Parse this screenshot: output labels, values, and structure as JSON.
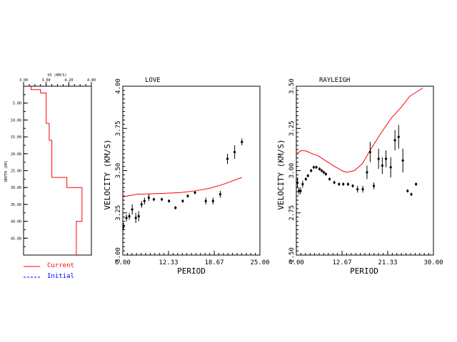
{
  "chart_data": [
    {
      "type": "line",
      "title": "",
      "xlabel": "VS (KM/S)",
      "ylabel": "DEPTH (KM)",
      "x_axis_position": "top",
      "xlim": [
        3.0,
        4.8
      ],
      "x_ticks": [
        "3.00",
        "3.60",
        "4.20",
        "4.80"
      ],
      "ylim": [
        0,
        50
      ],
      "y_ticks": [
        "5.00",
        "10.00",
        "15.00",
        "20.00",
        "25.00",
        "30.00",
        "35.00",
        "40.00",
        "45.00"
      ],
      "y_tick_values": [
        5,
        10,
        15,
        20,
        25,
        30,
        35,
        40,
        45
      ],
      "series": [
        {
          "name": "Current",
          "color": "#ff0000",
          "style": "solid",
          "steps": [
            {
              "vs": 3.2,
              "top": 0,
              "bottom": 1
            },
            {
              "vs": 3.45,
              "top": 1,
              "bottom": 2
            },
            {
              "vs": 3.6,
              "top": 2,
              "bottom": 11
            },
            {
              "vs": 3.68,
              "top": 11,
              "bottom": 16
            },
            {
              "vs": 3.75,
              "top": 16,
              "bottom": 27
            },
            {
              "vs": 4.15,
              "top": 27,
              "bottom": 30
            },
            {
              "vs": 4.55,
              "top": 30,
              "bottom": 40
            },
            {
              "vs": 4.4,
              "top": 40,
              "bottom": 50
            }
          ]
        }
      ],
      "legend": [
        {
          "label": "Current",
          "color": "#ff0000",
          "style": "solid"
        },
        {
          "label": "Initial",
          "color": "#0000ff",
          "style": "dashed"
        }
      ]
    },
    {
      "type": "scatter",
      "title": "LOVE",
      "xlabel": "PERIOD",
      "ylabel": "VELOCITY (KM/S)",
      "xlim": [
        6.0,
        25.0
      ],
      "x_ticks": [
        "6.00",
        "12.33",
        "18.67",
        "25.00"
      ],
      "ylim": [
        3.0,
        4.0
      ],
      "y_ticks": [
        "3.00",
        "3.25",
        "3.50",
        "3.75",
        "4.00"
      ],
      "observed": {
        "x": [
          6.1,
          6.5,
          6.9,
          7.3,
          7.8,
          8.2,
          8.6,
          9.0,
          9.6,
          10.3,
          11.4,
          12.4,
          13.3,
          14.3,
          15.0,
          16.0,
          17.5,
          18.5,
          19.5,
          20.5,
          21.5,
          22.5
        ],
        "y": [
          3.17,
          3.22,
          3.23,
          3.27,
          3.22,
          3.23,
          3.3,
          3.32,
          3.34,
          3.33,
          3.33,
          3.32,
          3.28,
          3.32,
          3.35,
          3.37,
          3.32,
          3.32,
          3.36,
          3.57,
          3.61,
          3.67
        ],
        "err": [
          0.02,
          0.02,
          0.02,
          0.03,
          0.03,
          0.03,
          0.02,
          0.02,
          0.02,
          0.01,
          0.01,
          0.01,
          0.01,
          0.01,
          0.01,
          0.01,
          0.02,
          0.02,
          0.02,
          0.03,
          0.04,
          0.02
        ]
      },
      "series": [
        {
          "color": "#ff0000",
          "x": [
            6.0,
            8.0,
            10.0,
            12.0,
            14.0,
            16.0,
            18.0,
            20.0,
            22.5
          ],
          "y": [
            3.345,
            3.36,
            3.363,
            3.366,
            3.37,
            3.38,
            3.395,
            3.42,
            3.46
          ]
        }
      ]
    },
    {
      "type": "scatter",
      "title": "RAYLEIGH",
      "xlabel": "PERIOD",
      "ylabel": "VELOCITY (KM/S)",
      "xlim": [
        4.0,
        30.0
      ],
      "x_ticks": [
        "4.00",
        "12.67",
        "21.33",
        "30.00"
      ],
      "ylim": [
        2.5,
        3.5
      ],
      "y_ticks": [
        "2.50",
        "2.75",
        "3.00",
        "3.25",
        "3.50"
      ],
      "observed": {
        "x": [
          4.2,
          4.5,
          4.8,
          5.2,
          5.8,
          6.2,
          6.8,
          7.3,
          7.8,
          8.4,
          8.8,
          9.2,
          9.6,
          10.3,
          11.2,
          12.1,
          12.9,
          13.8,
          14.7,
          15.6,
          16.6,
          17.4,
          18.0,
          18.7,
          19.6,
          20.3,
          21.0,
          21.9,
          22.7,
          23.4,
          24.2,
          25.1,
          25.8,
          26.7
        ],
        "y": [
          2.93,
          2.88,
          2.88,
          2.92,
          2.95,
          2.97,
          3.0,
          3.02,
          3.02,
          3.01,
          3.0,
          2.99,
          2.98,
          2.95,
          2.93,
          2.92,
          2.92,
          2.92,
          2.91,
          2.89,
          2.89,
          2.99,
          3.11,
          2.91,
          3.07,
          3.03,
          3.07,
          3.02,
          3.18,
          3.2,
          3.06,
          2.88,
          2.86,
          2.92
        ],
        "err": [
          0.03,
          0.02,
          0.02,
          0.02,
          0.01,
          0.01,
          0.01,
          0.01,
          0.01,
          0.01,
          0.01,
          0.01,
          0.01,
          0.01,
          0.01,
          0.01,
          0.01,
          0.01,
          0.01,
          0.02,
          0.02,
          0.04,
          0.06,
          0.02,
          0.06,
          0.05,
          0.05,
          0.06,
          0.06,
          0.07,
          0.07,
          0.01,
          0.01,
          0.01
        ]
      },
      "series": [
        {
          "color": "#ff0000",
          "x": [
            4.0,
            5.0,
            6.0,
            7.0,
            8.0,
            9.5,
            11.0,
            12.67,
            13.5,
            15.0,
            16.5,
            18.0,
            20.0,
            22.0,
            24.0,
            25.5,
            27.0,
            28.0
          ],
          "y": [
            3.1,
            3.12,
            3.115,
            3.1,
            3.09,
            3.06,
            3.03,
            3.0,
            2.99,
            3.0,
            3.04,
            3.12,
            3.22,
            3.31,
            3.38,
            3.44,
            3.47,
            3.49
          ]
        }
      ]
    }
  ]
}
